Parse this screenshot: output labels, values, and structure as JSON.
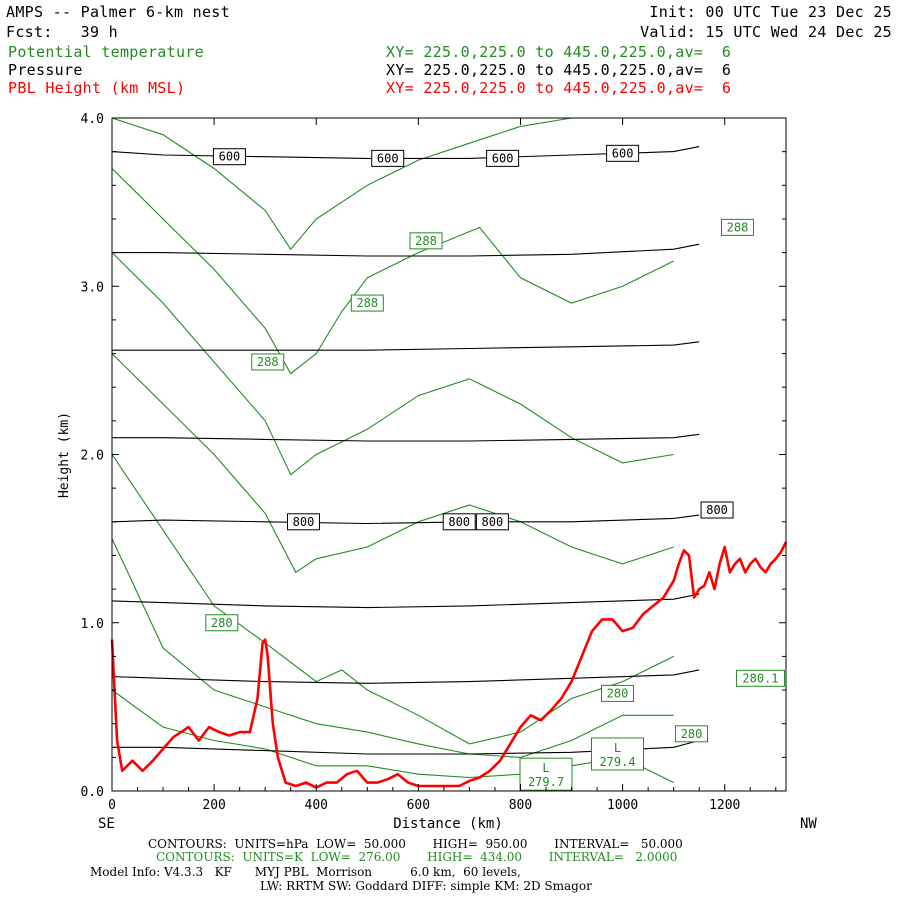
{
  "header": {
    "title": "AMPS -- Palmer 6-km nest",
    "fcst": "Fcst:   39 h",
    "init": "Init: 00 UTC Tue 23 Dec 25",
    "valid": "Valid: 15 UTC Wed 24 Dec 25",
    "fields": [
      {
        "name": "Potential temperature",
        "xy": "XY= 225.0,225.0 to 445.0,225.0,av=  6",
        "color": "#228b22"
      },
      {
        "name": "Pressure",
        "xy": "XY= 225.0,225.0 to 445.0,225.0,av=  6",
        "color": "#000000"
      },
      {
        "name": "PBL Height (km MSL)",
        "xy": "XY= 225.0,225.0 to 445.0,225.0,av=  6",
        "color": "#ff0000"
      }
    ]
  },
  "footer": {
    "pressure_contours": "CONTOURS:  UNITS=hPa  LOW=  50.000       HIGH=  950.00       INTERVAL=   50.000",
    "theta_contours": "CONTOURS:  UNITS=K  LOW=  276.00       HIGH=  434.00       INTERVAL=   2.0000",
    "model_info": "Model Info: V4.3.3   KF      MYJ PBL  Morrison          6.0 km,  60 levels,",
    "physics": "LW: RRTM SW: Goddard DIFF: simple KM: 2D Smagor"
  },
  "chart_data": {
    "type": "line",
    "xlabel": "Distance (km)",
    "ylabel": "Height (km)",
    "xlim": [
      0,
      1320
    ],
    "ylim": [
      0,
      4
    ],
    "x_ticks": [
      0,
      200,
      400,
      600,
      800,
      1000,
      1200
    ],
    "y_ticks": [
      0.0,
      1.0,
      2.0,
      3.0,
      4.0
    ],
    "y_tick_labels": [
      "0.0",
      "1.0",
      "2.0",
      "3.0",
      "4.0"
    ],
    "left_end_label": "SE",
    "right_end_label": "NW",
    "colors": {
      "pressure": "#000000",
      "theta": "#228b22",
      "pbl": "#ff0000"
    },
    "series": [
      {
        "name": "PBL Height (km MSL)",
        "x": [
          0,
          10,
          20,
          40,
          60,
          80,
          100,
          120,
          150,
          170,
          190,
          210,
          230,
          250,
          270,
          285,
          295,
          300,
          305,
          315,
          325,
          340,
          360,
          380,
          400,
          420,
          440,
          460,
          480,
          500,
          520,
          540,
          560,
          580,
          600,
          640,
          680,
          700,
          720,
          740,
          760,
          780,
          800,
          820,
          840,
          860,
          880,
          900,
          920,
          940,
          960,
          980,
          1000,
          1020,
          1040,
          1060,
          1080,
          1100,
          1110,
          1120,
          1130,
          1140,
          1150,
          1160,
          1170,
          1180,
          1190,
          1200,
          1210,
          1220,
          1230,
          1240,
          1250,
          1260,
          1270,
          1280,
          1290,
          1300,
          1310,
          1320
        ],
        "y": [
          0.9,
          0.3,
          0.12,
          0.18,
          0.12,
          0.18,
          0.25,
          0.32,
          0.38,
          0.3,
          0.38,
          0.35,
          0.33,
          0.35,
          0.35,
          0.55,
          0.88,
          0.9,
          0.8,
          0.4,
          0.2,
          0.05,
          0.03,
          0.05,
          0.02,
          0.05,
          0.05,
          0.1,
          0.12,
          0.05,
          0.05,
          0.07,
          0.1,
          0.05,
          0.03,
          0.03,
          0.03,
          0.06,
          0.08,
          0.12,
          0.18,
          0.28,
          0.38,
          0.45,
          0.42,
          0.48,
          0.55,
          0.65,
          0.8,
          0.95,
          1.02,
          1.02,
          0.95,
          0.97,
          1.05,
          1.1,
          1.15,
          1.25,
          1.35,
          1.43,
          1.4,
          1.15,
          1.2,
          1.22,
          1.3,
          1.2,
          1.35,
          1.45,
          1.3,
          1.35,
          1.38,
          1.3,
          1.35,
          1.38,
          1.33,
          1.3,
          1.35,
          1.38,
          1.42,
          1.48
        ]
      },
      {
        "name": "pressure",
        "levels": [
          {
            "x": [
              0,
              100,
              300,
              500,
              700,
              900,
              1100,
              1150
            ],
            "y": [
              3.8,
              3.78,
              3.77,
              3.76,
              3.76,
              3.78,
              3.8,
              3.83
            ]
          },
          {
            "x": [
              0,
              100,
              300,
              500,
              700,
              900,
              1100,
              1150
            ],
            "y": [
              3.2,
              3.2,
              3.19,
              3.18,
              3.18,
              3.19,
              3.22,
              3.25
            ]
          },
          {
            "x": [
              0,
              100,
              300,
              500,
              700,
              900,
              1100,
              1150
            ],
            "y": [
              2.62,
              2.62,
              2.62,
              2.62,
              2.63,
              2.64,
              2.65,
              2.67
            ]
          },
          {
            "x": [
              0,
              100,
              300,
              500,
              700,
              900,
              1100,
              1150
            ],
            "y": [
              2.1,
              2.1,
              2.09,
              2.08,
              2.08,
              2.09,
              2.1,
              2.12
            ]
          },
          {
            "x": [
              0,
              100,
              300,
              500,
              700,
              900,
              1100,
              1150
            ],
            "y": [
              1.6,
              1.61,
              1.6,
              1.59,
              1.6,
              1.6,
              1.62,
              1.64
            ]
          },
          {
            "x": [
              0,
              100,
              300,
              500,
              700,
              900,
              1100,
              1150
            ],
            "y": [
              1.13,
              1.12,
              1.1,
              1.09,
              1.1,
              1.12,
              1.14,
              1.17
            ]
          },
          {
            "x": [
              0,
              100,
              300,
              500,
              700,
              900,
              1100,
              1150
            ],
            "y": [
              0.68,
              0.67,
              0.65,
              0.64,
              0.65,
              0.67,
              0.69,
              0.72
            ]
          },
          {
            "x": [
              0,
              100,
              300,
              500,
              700,
              900,
              1100,
              1150
            ],
            "y": [
              0.26,
              0.26,
              0.24,
              0.22,
              0.22,
              0.23,
              0.26,
              0.3
            ]
          }
        ]
      },
      {
        "name": "theta",
        "levels": [
          {
            "x": [
              0,
              100,
              200,
              300,
              350,
              400,
              500,
              600,
              700,
              800,
              900,
              1000,
              1100
            ],
            "y": [
              4.0,
              3.9,
              3.7,
              3.45,
              3.22,
              3.4,
              3.6,
              3.75,
              3.85,
              3.95,
              4.0,
              4.0,
              4.0
            ]
          },
          {
            "x": [
              0,
              100,
              200,
              300,
              350,
              400,
              450,
              500,
              600,
              720,
              800,
              900,
              1000,
              1100
            ],
            "y": [
              3.7,
              3.4,
              3.1,
              2.75,
              2.48,
              2.6,
              2.85,
              3.05,
              3.2,
              3.35,
              3.05,
              2.9,
              3.0,
              3.15
            ]
          },
          {
            "x": [
              0,
              100,
              200,
              300,
              350,
              400,
              500,
              600,
              700,
              800,
              900,
              1000,
              1100
            ],
            "y": [
              3.2,
              2.9,
              2.55,
              2.2,
              1.88,
              2.0,
              2.15,
              2.35,
              2.45,
              2.3,
              2.1,
              1.95,
              2.0
            ]
          },
          {
            "x": [
              0,
              100,
              200,
              300,
              360,
              400,
              500,
              600,
              700,
              800,
              900,
              1000,
              1100
            ],
            "y": [
              2.6,
              2.3,
              2.0,
              1.65,
              1.3,
              1.38,
              1.45,
              1.6,
              1.7,
              1.6,
              1.45,
              1.35,
              1.45
            ]
          },
          {
            "x": [
              0,
              100,
              200,
              300,
              400,
              450,
              500,
              600,
              700,
              800,
              900,
              1000,
              1100
            ],
            "y": [
              2.0,
              1.55,
              1.1,
              0.88,
              0.65,
              0.72,
              0.6,
              0.45,
              0.28,
              0.35,
              0.55,
              0.65,
              0.8
            ]
          },
          {
            "x": [
              0,
              100,
              200,
              300,
              400,
              500,
              600,
              700,
              800,
              900,
              1000,
              1100
            ],
            "y": [
              1.5,
              0.85,
              0.6,
              0.5,
              0.4,
              0.35,
              0.28,
              0.22,
              0.2,
              0.3,
              0.45,
              0.45
            ]
          },
          {
            "x": [
              0,
              100,
              200,
              300,
              400,
              500,
              600,
              700,
              800,
              900,
              1000,
              1100
            ],
            "y": [
              0.6,
              0.38,
              0.3,
              0.25,
              0.15,
              0.15,
              0.1,
              0.08,
              0.1,
              0.15,
              0.2,
              0.05
            ]
          }
        ]
      }
    ],
    "contour_labels": [
      {
        "text": "600",
        "x": 230,
        "y": 3.77,
        "color": "#000000"
      },
      {
        "text": "600",
        "x": 540,
        "y": 3.76,
        "color": "#000000"
      },
      {
        "text": "600",
        "x": 765,
        "y": 3.76,
        "color": "#000000"
      },
      {
        "text": "600",
        "x": 1000,
        "y": 3.79,
        "color": "#000000"
      },
      {
        "text": "800",
        "x": 375,
        "y": 1.6,
        "color": "#000000"
      },
      {
        "text": "800",
        "x": 680,
        "y": 1.6,
        "color": "#000000"
      },
      {
        "text": "800",
        "x": 745,
        "y": 1.6,
        "color": "#000000"
      },
      {
        "text": "800",
        "x": 1185,
        "y": 1.67,
        "color": "#000000"
      },
      {
        "text": "288",
        "x": 615,
        "y": 3.27,
        "color": "#228b22"
      },
      {
        "text": "288",
        "x": 500,
        "y": 2.9,
        "color": "#228b22"
      },
      {
        "text": "288",
        "x": 305,
        "y": 2.55,
        "color": "#228b22"
      },
      {
        "text": "288",
        "x": 1225,
        "y": 3.35,
        "color": "#228b22"
      },
      {
        "text": "280",
        "x": 215,
        "y": 1.0,
        "color": "#228b22"
      },
      {
        "text": "280",
        "x": 990,
        "y": 0.58,
        "color": "#228b22"
      },
      {
        "text": "280",
        "x": 1135,
        "y": 0.34,
        "color": "#228b22"
      },
      {
        "text": "280.1",
        "x": 1270,
        "y": 0.67,
        "color": "#228b22"
      }
    ],
    "low_markers": [
      {
        "letter": "L",
        "value": "279.7",
        "x": 850,
        "y": 0.1
      },
      {
        "letter": "L",
        "value": "279.4",
        "x": 990,
        "y": 0.22
      }
    ]
  }
}
